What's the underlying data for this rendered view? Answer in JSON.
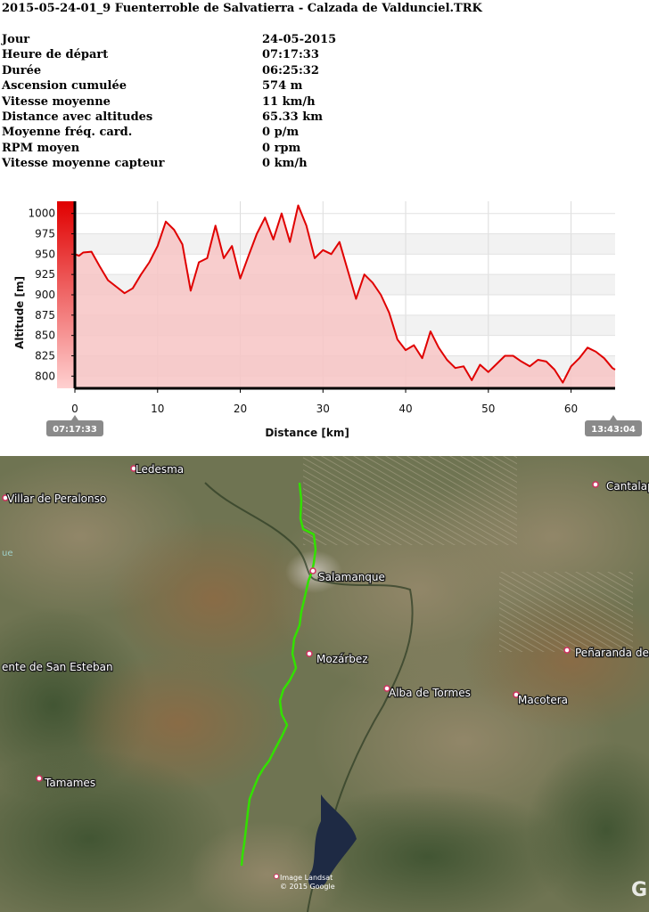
{
  "title": "2015-05-24-01_9 Fuenterroble de Salvatierra - Calzada de Valdunciel.TRK",
  "stats": [
    {
      "label": "Jour",
      "value": "24-05-2015"
    },
    {
      "label": "Heure de départ",
      "value": "07:17:33"
    },
    {
      "label": "Durée",
      "value": "06:25:32"
    },
    {
      "label": "Ascension cumulée",
      "value": "574 m"
    },
    {
      "label": "Vitesse moyenne",
      "value": "11 km/h"
    },
    {
      "label": "Distance avec altitudes",
      "value": "65.33 km"
    },
    {
      "label": "Moyenne fréq. card.",
      "value": "0 p/m"
    },
    {
      "label": "RPM moyen",
      "value": "0 rpm"
    },
    {
      "label": "Vitesse moyenne capteur",
      "value": "0 km/h"
    }
  ],
  "chart_data": {
    "type": "area",
    "xlabel": "Distance [km]",
    "ylabel": "Altitude [m]",
    "xlim": [
      0,
      65.33
    ],
    "ylim": [
      785,
      1015
    ],
    "xticks": [
      0,
      10,
      20,
      30,
      40,
      50,
      60
    ],
    "yticks": [
      800,
      825,
      850,
      875,
      900,
      925,
      950,
      975,
      1000
    ],
    "start_time": "07:17:33",
    "end_time": "13:43:04",
    "colors": {
      "line": "#e00000",
      "fill": "#f7c4c4",
      "band": "#f2f2f2",
      "left_bar": "#e00000"
    },
    "x": [
      0,
      0.5,
      1,
      2,
      3,
      4,
      5,
      6,
      7,
      8,
      9,
      10,
      11,
      12,
      13,
      14,
      15,
      16,
      17,
      18,
      19,
      20,
      21,
      22,
      23,
      24,
      25,
      26,
      27,
      28,
      29,
      30,
      31,
      32,
      33,
      34,
      35,
      36,
      37,
      38,
      39,
      40,
      41,
      42,
      43,
      44,
      45,
      46,
      47,
      48,
      49,
      50,
      51,
      52,
      53,
      54,
      55,
      56,
      57,
      58,
      59,
      60,
      61,
      62,
      63,
      64,
      65,
      65.33
    ],
    "y": [
      950,
      948,
      952,
      953,
      935,
      918,
      910,
      902,
      908,
      925,
      940,
      960,
      990,
      980,
      962,
      905,
      940,
      945,
      985,
      945,
      960,
      920,
      948,
      975,
      995,
      968,
      1000,
      965,
      1010,
      985,
      945,
      955,
      950,
      965,
      930,
      895,
      925,
      915,
      900,
      878,
      845,
      832,
      838,
      822,
      855,
      835,
      820,
      810,
      812,
      795,
      814,
      805,
      815,
      825,
      825,
      818,
      812,
      820,
      818,
      808,
      792,
      812,
      822,
      835,
      830,
      822,
      810,
      808
    ]
  },
  "map": {
    "colors": {
      "track": "#33e000",
      "marker": "#d03060"
    },
    "place_labels": [
      "Ledesma",
      "Villar de Peralonso",
      "Cantalapi",
      "Salamanque",
      "Mozárbez",
      "ente de San Esteban",
      "Alba de Tormes",
      "Peñaranda de",
      "Macotera",
      "Tamames"
    ],
    "credit_line1": "Image Landsat",
    "credit_line2": "© 2015 Google",
    "corner_glyph": "G",
    "edge_glyph": "ue"
  }
}
